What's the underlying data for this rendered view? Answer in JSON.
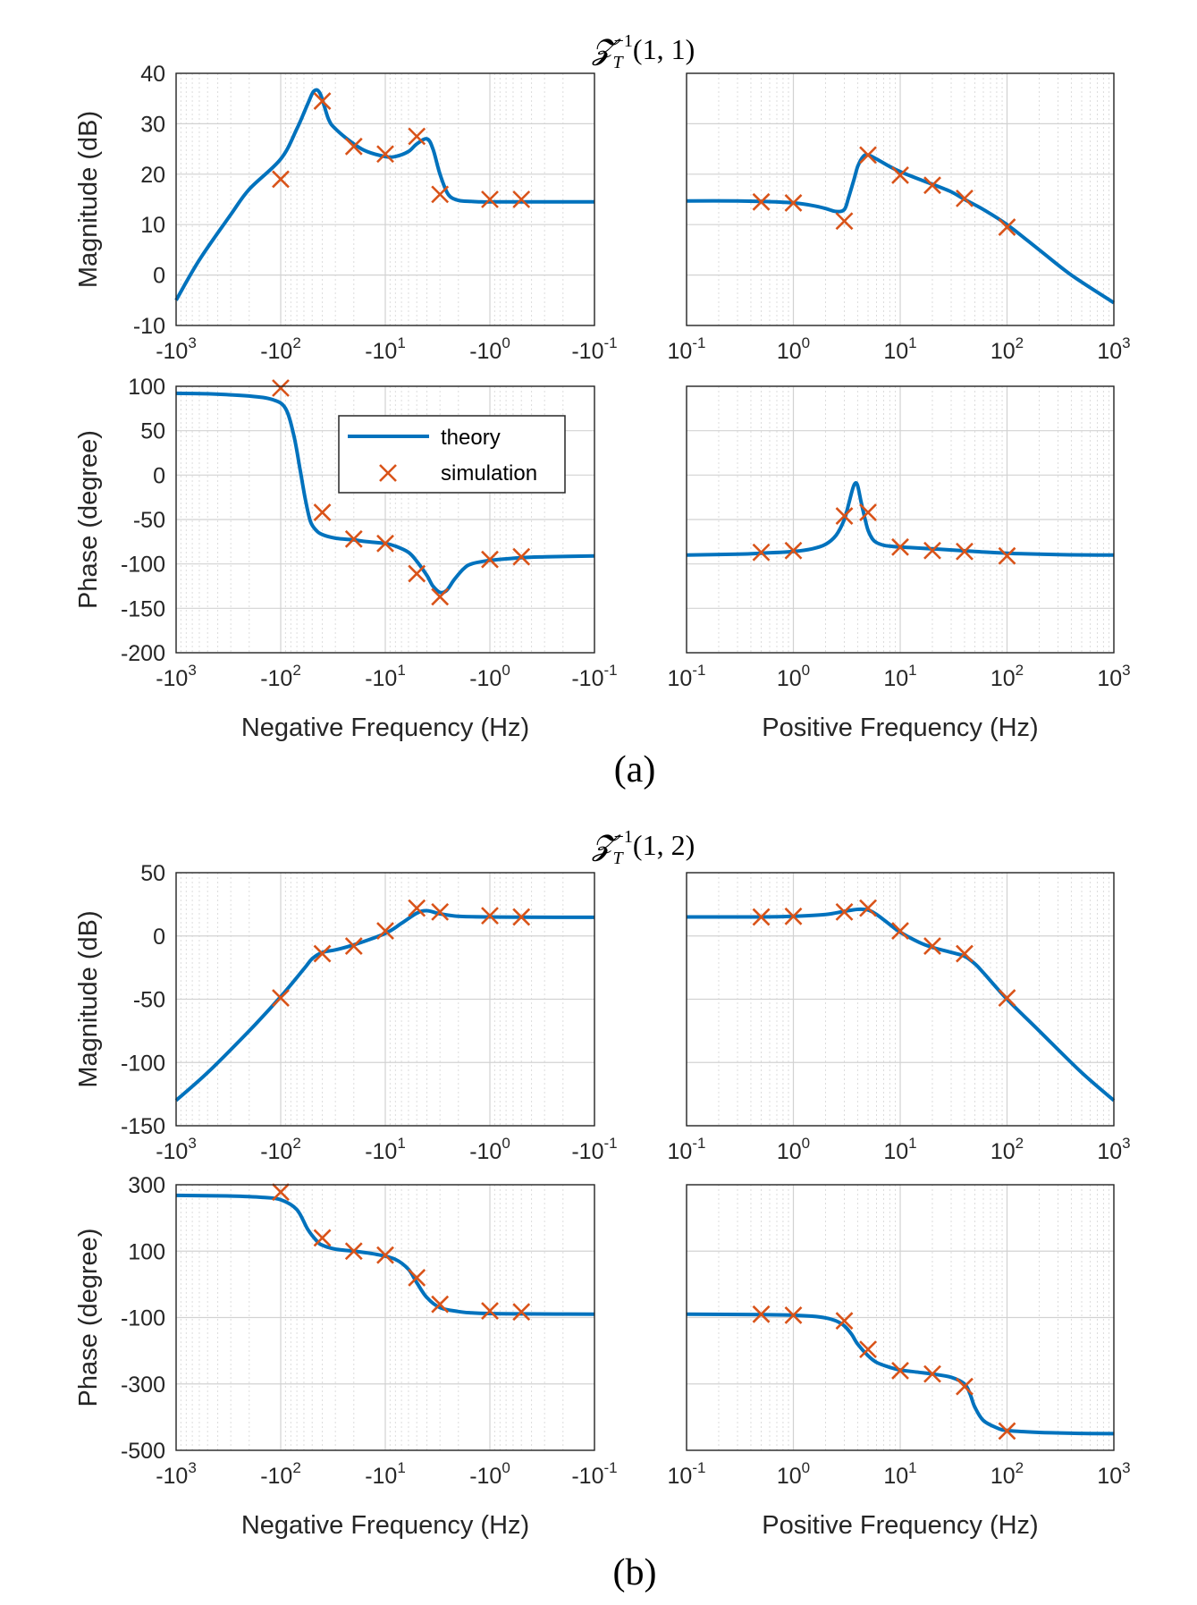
{
  "chart_data": [
    {
      "type": "line",
      "title": "Z_T^{-1}(1,1)",
      "title_main": "𝓩",
      "title_sub": "T",
      "title_sup": "−1",
      "title_args": "(1, 1)",
      "caption": "(a)",
      "xscale": "log",
      "colors": {
        "theory": "#0072BD",
        "simulation": "#D95319"
      },
      "legend": {
        "entries": [
          "theory",
          "simulation"
        ],
        "placement": "inside magnitude-negative phase panel, upper middle"
      },
      "panels": [
        {
          "id": "a-mag-neg",
          "side": "negative",
          "quantity": "magnitude",
          "ylabel": "Magnitude (dB)",
          "ylim": [
            -10,
            40
          ],
          "yticks": [
            "40",
            "30",
            "20",
            "10",
            "0",
            "-10"
          ],
          "xlim": [
            1000,
            0.1
          ],
          "xtick_labels": [
            {
              "base": "-10",
              "exp": "3"
            },
            {
              "base": "-10",
              "exp": "2"
            },
            {
              "base": "-10",
              "exp": "1"
            },
            {
              "base": "-10",
              "exp": "0"
            },
            {
              "base": "-10",
              "exp": "-1"
            }
          ],
          "theory": {
            "x": [
              1000,
              600,
              300,
              200,
              100,
              70,
              55,
              48,
              42,
              35,
              30,
              20,
              15,
              10,
              8,
              6,
              5,
              4,
              3.5,
              3,
              2.5,
              2,
              1.5,
              1.2,
              1,
              0.5,
              0.3,
              0.1
            ],
            "y": [
              -5,
              3,
              12,
              17,
              23,
              29,
              34,
              36.5,
              36,
              31,
              29,
              26,
              24.5,
              23.5,
              23.5,
              24.5,
              26,
              27,
              25,
              20,
              16,
              14.8,
              14.6,
              14.5,
              14.5,
              14.5,
              14.5,
              14.5
            ]
          },
          "simulation": {
            "x": [
              100,
              40,
              20,
              10,
              5,
              3,
              1,
              0.5
            ],
            "y": [
              19,
              34.5,
              25.5,
              24,
              27.5,
              16,
              15,
              15
            ]
          }
        },
        {
          "id": "a-mag-pos",
          "side": "positive",
          "quantity": "magnitude",
          "ylim": [
            -10,
            40
          ],
          "xlim": [
            0.1,
            1000
          ],
          "xtick_labels": [
            {
              "base": "10",
              "exp": "-1"
            },
            {
              "base": "10",
              "exp": "0"
            },
            {
              "base": "10",
              "exp": "1"
            },
            {
              "base": "10",
              "exp": "2"
            },
            {
              "base": "10",
              "exp": "3"
            }
          ],
          "xlabel": "",
          "theory": {
            "x": [
              0.1,
              0.3,
              0.5,
              1,
              1.5,
              2,
              2.5,
              3,
              3.3,
              3.7,
              4,
              4.5,
              5,
              6,
              8,
              10,
              15,
              20,
              30,
              40,
              60,
              100,
              200,
              400,
              1000
            ],
            "y": [
              14.7,
              14.7,
              14.6,
              14.3,
              13.8,
              13.2,
              12.6,
              13,
              15.5,
              19,
              21.5,
              23.5,
              23.8,
              23,
              21.5,
              20.5,
              19,
              18,
              16.5,
              15,
              13,
              10,
              5,
              0,
              -5.5
            ]
          },
          "simulation": {
            "x": [
              0.5,
              1,
              3,
              5,
              10,
              20,
              40,
              100
            ],
            "y": [
              14.5,
              14.3,
              10.7,
              23.8,
              19.8,
              17.8,
              15.2,
              9.5
            ]
          }
        },
        {
          "id": "a-ph-neg",
          "side": "negative",
          "quantity": "phase",
          "ylabel": "Phase (degree)",
          "ylim": [
            -200,
            100
          ],
          "yticks": [
            "100",
            "50",
            "0",
            "-50",
            "-100",
            "-200"
          ],
          "xlim": [
            1000,
            0.1
          ],
          "xlabel": "Negative Frequency (Hz)",
          "xtick_labels": [
            {
              "base": "-10",
              "exp": "3"
            },
            {
              "base": "-10",
              "exp": "2"
            },
            {
              "base": "-10",
              "exp": "1"
            },
            {
              "base": "-10",
              "exp": "0"
            },
            {
              "base": "-10",
              "exp": "-1"
            }
          ],
          "theory": {
            "x": [
              1000,
              500,
              200,
              120,
              90,
              75,
              65,
              58,
              52,
              46,
              40,
              30,
              20,
              15,
              10,
              8,
              6,
              5,
              4,
              3.5,
              3,
              2.6,
              2.2,
              1.8,
              1.5,
              1,
              0.5,
              0.3,
              0.1
            ],
            "y": [
              92,
              91.5,
              89,
              85,
              75,
              45,
              5,
              -28,
              -52,
              -62,
              -67,
              -71,
              -73,
              -75,
              -77,
              -80,
              -87,
              -97,
              -113,
              -125,
              -132,
              -130,
              -118,
              -106,
              -100,
              -96,
              -93,
              -92,
              -91
            ]
          },
          "simulation": {
            "x": [
              100,
              40,
              20,
              10,
              5,
              3,
              1,
              0.5
            ],
            "y": [
              98,
              -42,
              -72,
              -77,
              -111,
              -137,
              -95,
              -92
            ]
          }
        },
        {
          "id": "a-ph-pos",
          "side": "positive",
          "quantity": "phase",
          "ylim": [
            -200,
            100
          ],
          "xlim": [
            0.1,
            1000
          ],
          "xlabel": "Positive Frequency (Hz)",
          "xtick_labels": [
            {
              "base": "10",
              "exp": "-1"
            },
            {
              "base": "10",
              "exp": "0"
            },
            {
              "base": "10",
              "exp": "1"
            },
            {
              "base": "10",
              "exp": "2"
            },
            {
              "base": "10",
              "exp": "3"
            }
          ],
          "theory": {
            "x": [
              0.1,
              0.3,
              0.5,
              1,
              1.5,
              2,
              2.5,
              3,
              3.3,
              3.6,
              3.8,
              4,
              4.3,
              4.7,
              5,
              5.5,
              6,
              7,
              8,
              10,
              20,
              50,
              100,
              300,
              1000
            ],
            "y": [
              -90,
              -89,
              -88,
              -86,
              -83,
              -78,
              -68,
              -50,
              -32,
              -15,
              -9,
              -12,
              -30,
              -50,
              -62,
              -72,
              -76,
              -79,
              -80,
              -81,
              -83,
              -86,
              -88,
              -89.5,
              -90
            ]
          },
          "simulation": {
            "x": [
              0.5,
              1,
              3,
              5,
              10,
              20,
              40,
              100
            ],
            "y": [
              -87,
              -85,
              -46,
              -42,
              -81,
              -85,
              -86,
              -91
            ]
          }
        }
      ]
    },
    {
      "type": "line",
      "title": "Z_T^{-1}(1,2)",
      "title_main": "𝓩",
      "title_sub": "T",
      "title_sup": "−1",
      "title_args": "(1, 2)",
      "caption": "(b)",
      "xscale": "log",
      "colors": {
        "theory": "#0072BD",
        "simulation": "#D95319"
      },
      "panels": [
        {
          "id": "b-mag-neg",
          "side": "negative",
          "quantity": "magnitude",
          "ylabel": "Magnitude (dB)",
          "ylim": [
            -150,
            50
          ],
          "yticks": [
            "50",
            "0",
            "-50",
            "-100",
            "-150"
          ],
          "xlim": [
            1000,
            0.1
          ],
          "xtick_labels": [
            {
              "base": "-10",
              "exp": "3"
            },
            {
              "base": "-10",
              "exp": "2"
            },
            {
              "base": "-10",
              "exp": "1"
            },
            {
              "base": "-10",
              "exp": "0"
            },
            {
              "base": "-10",
              "exp": "-1"
            }
          ],
          "theory": {
            "x": [
              1000,
              500,
              200,
              100,
              60,
              50,
              40,
              30,
              20,
              10,
              7,
              5,
              4,
              3,
              2,
              1,
              0.5,
              0.1
            ],
            "y": [
              -130,
              -108,
              -75,
              -48,
              -26,
              -18,
              -13,
              -11,
              -7,
              2,
              10,
              18,
              20,
              17.5,
              15.5,
              15,
              14.8,
              14.7
            ]
          },
          "simulation": {
            "x": [
              100,
              40,
              20,
              10,
              5,
              3,
              1,
              0.5
            ],
            "y": [
              -49,
              -14,
              -8,
              4,
              22,
              19,
              16,
              15
            ]
          }
        },
        {
          "id": "b-mag-pos",
          "side": "positive",
          "quantity": "magnitude",
          "ylim": [
            -150,
            50
          ],
          "xlim": [
            0.1,
            1000
          ],
          "xtick_labels": [
            {
              "base": "10",
              "exp": "-1"
            },
            {
              "base": "10",
              "exp": "0"
            },
            {
              "base": "10",
              "exp": "1"
            },
            {
              "base": "10",
              "exp": "2"
            },
            {
              "base": "10",
              "exp": "3"
            }
          ],
          "theory": {
            "x": [
              0.1,
              0.5,
              1,
              2,
              3,
              4,
              5,
              6,
              8,
              10,
              15,
              20,
              30,
              40,
              50,
              60,
              100,
              200,
              500,
              1000
            ],
            "y": [
              15,
              15,
              15.5,
              17,
              19.5,
              21,
              20.5,
              17,
              9,
              3,
              -5,
              -9,
              -13,
              -16,
              -22,
              -29,
              -50,
              -75,
              -108,
              -130
            ]
          },
          "simulation": {
            "x": [
              0.5,
              1,
              3,
              5,
              10,
              20,
              40,
              100
            ],
            "y": [
              15,
              15.5,
              19,
              22,
              4,
              -8,
              -14,
              -49
            ]
          }
        },
        {
          "id": "b-ph-neg",
          "side": "negative",
          "quantity": "phase",
          "ylabel": "Phase (degree)",
          "ylim": [
            -500,
            300
          ],
          "yticks": [
            "300",
            "100",
            "-100",
            "-300",
            "-500"
          ],
          "xlim": [
            1000,
            0.1
          ],
          "xlabel": "Negative Frequency (Hz)",
          "xtick_labels": [
            {
              "base": "-10",
              "exp": "3"
            },
            {
              "base": "-10",
              "exp": "2"
            },
            {
              "base": "-10",
              "exp": "1"
            },
            {
              "base": "-10",
              "exp": "0"
            },
            {
              "base": "-10",
              "exp": "-1"
            }
          ],
          "theory": {
            "x": [
              1000,
              300,
              150,
              100,
              70,
              55,
              45,
              40,
              30,
              20,
              12,
              8,
              6,
              5,
              4,
              3,
              2,
              1.5,
              1,
              0.5,
              0.1
            ],
            "y": [
              268,
              266,
              262,
              255,
              225,
              165,
              130,
              118,
              106,
              100,
              90,
              75,
              45,
              5,
              -40,
              -70,
              -82,
              -86,
              -88,
              -89,
              -90
            ]
          },
          "simulation": {
            "x": [
              100,
              40,
              20,
              10,
              5,
              3,
              1,
              0.5
            ],
            "y": [
              278,
              140,
              100,
              88,
              20,
              -60,
              -80,
              -83
            ]
          }
        },
        {
          "id": "b-ph-pos",
          "side": "positive",
          "quantity": "phase",
          "ylim": [
            -500,
            300
          ],
          "xlim": [
            0.1,
            1000
          ],
          "xlabel": "Positive Frequency (Hz)",
          "xtick_labels": [
            {
              "base": "10",
              "exp": "-1"
            },
            {
              "base": "10",
              "exp": "0"
            },
            {
              "base": "10",
              "exp": "1"
            },
            {
              "base": "10",
              "exp": "2"
            },
            {
              "base": "10",
              "exp": "3"
            }
          ],
          "theory": {
            "x": [
              0.1,
              0.5,
              1,
              1.5,
              2,
              2.5,
              3,
              3.5,
              4,
              5,
              6,
              8,
              10,
              15,
              20,
              30,
              40,
              45,
              50,
              60,
              80,
              100,
              200,
              500,
              1000
            ],
            "y": [
              -90,
              -91,
              -93,
              -96,
              -101,
              -110,
              -125,
              -150,
              -180,
              -215,
              -235,
              -250,
              -258,
              -265,
              -270,
              -280,
              -300,
              -330,
              -370,
              -410,
              -432,
              -440,
              -446,
              -449,
              -450
            ]
          },
          "simulation": {
            "x": [
              0.5,
              1,
              3,
              5,
              10,
              20,
              40,
              100
            ],
            "y": [
              -90,
              -93,
              -110,
              -196,
              -260,
              -270,
              -308,
              -442
            ]
          }
        }
      ]
    }
  ]
}
